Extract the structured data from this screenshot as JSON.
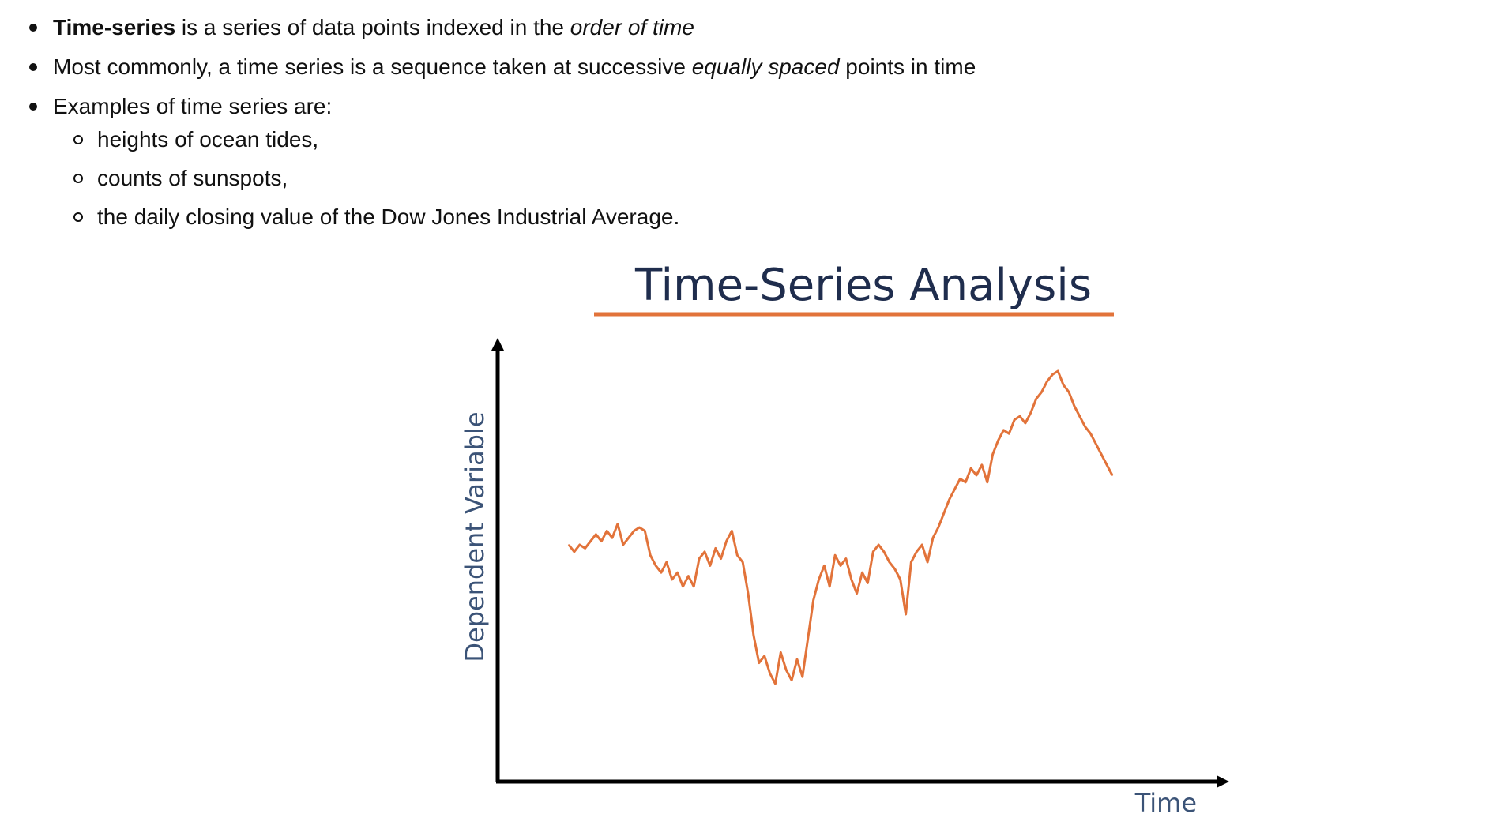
{
  "notes": {
    "bullets": [
      {
        "bold": "Time-series",
        "text1": " is a series of data points indexed in the ",
        "italic": "order of time",
        "text2": ""
      },
      {
        "text1": "Most commonly, a time series is a sequence taken at successive ",
        "italic": "equally spaced",
        "text2": " points in time"
      },
      {
        "text1": "Examples of time series are:"
      }
    ],
    "sub_bullets": [
      "heights of ocean tides,",
      "counts of sunspots,",
      "the daily closing value of the Dow Jones Industrial Average."
    ]
  },
  "chart_data": {
    "type": "line",
    "title": "Time-Series Analysis",
    "xlabel": "Time",
    "ylabel": "Dependent Variable",
    "xlim": [
      0,
      100
    ],
    "ylim": [
      0,
      100
    ],
    "grid": false,
    "colors": {
      "line": "#e2733a",
      "title_underline": "#e2733a",
      "axes": "#000000",
      "title": "#1f2d4d",
      "labels": "#3b5377"
    },
    "series": [
      {
        "x": [
          0,
          1,
          2,
          3,
          4,
          5,
          6,
          7,
          8,
          9,
          10,
          11,
          12,
          13,
          14,
          15,
          16,
          17,
          18,
          19,
          20,
          21,
          22,
          23,
          24,
          25,
          26,
          27,
          28,
          29,
          30,
          31,
          32,
          33,
          34,
          35,
          36,
          37,
          38,
          39,
          40,
          41,
          42,
          43,
          44,
          45,
          46,
          47,
          48,
          49,
          50,
          51,
          52,
          53,
          54,
          55,
          56,
          57,
          58,
          59,
          60,
          61,
          62,
          63,
          64,
          65,
          66,
          67,
          68,
          69,
          70,
          71,
          72,
          73,
          74,
          75,
          76,
          77,
          78,
          79,
          80,
          81,
          82,
          83,
          84,
          85,
          86,
          87,
          88,
          89,
          90,
          91,
          92,
          93,
          94,
          95,
          96,
          97,
          98,
          99,
          100
        ],
        "values": [
          50,
          48,
          50,
          49,
          51,
          53,
          51,
          54,
          52,
          56,
          50,
          52,
          54,
          55,
          54,
          47,
          44,
          42,
          45,
          40,
          42,
          38,
          41,
          38,
          46,
          48,
          44,
          49,
          46,
          51,
          54,
          47,
          45,
          36,
          24,
          16,
          18,
          13,
          10,
          19,
          14,
          11,
          17,
          12,
          23,
          34,
          40,
          44,
          38,
          47,
          44,
          46,
          40,
          36,
          42,
          39,
          48,
          50,
          48,
          45,
          43,
          40,
          30,
          45,
          48,
          50,
          45,
          52,
          55,
          59,
          63,
          66,
          69,
          68,
          72,
          70,
          73,
          68,
          76,
          80,
          83,
          82,
          86,
          87,
          85,
          88,
          92,
          94,
          97,
          99,
          100,
          96,
          94,
          90,
          87,
          84,
          82,
          79,
          76,
          73,
          70
        ]
      }
    ]
  }
}
